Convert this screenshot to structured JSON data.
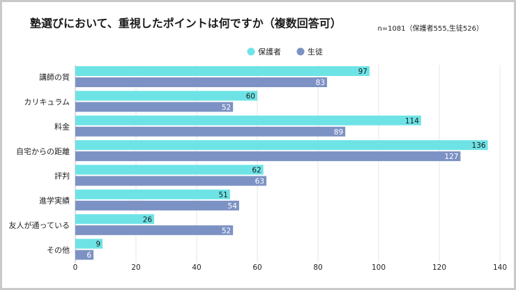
{
  "chart_data": {
    "type": "bar",
    "orientation": "horizontal",
    "title": "塾選びにおいて、重視したポイントは何ですか（複数回答可）",
    "note": "n=1081（保護者555,生徒526）",
    "categories": [
      "講師の質",
      "カリキュラム",
      "料金",
      "自宅からの距離",
      "評判",
      "進学実績",
      "友人が通っている",
      "その他"
    ],
    "series": [
      {
        "name": "保護者",
        "color": "#6ee3e6",
        "values": [
          97,
          60,
          114,
          136,
          62,
          51,
          26,
          9
        ]
      },
      {
        "name": "生徒",
        "color": "#7d92c4",
        "values": [
          83,
          52,
          89,
          127,
          63,
          54,
          52,
          6
        ]
      }
    ],
    "xlim": [
      0,
      140
    ],
    "xticks": [
      0,
      20,
      40,
      60,
      80,
      100,
      120,
      140
    ],
    "legend_position": "top-center",
    "grid": true
  }
}
